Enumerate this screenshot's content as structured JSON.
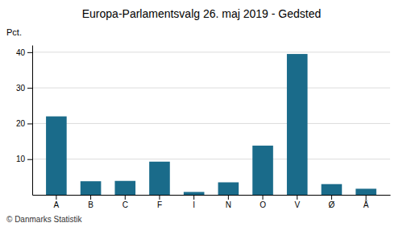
{
  "chart_data": {
    "type": "bar",
    "title": "Europa-Parlamentsvalg 26. maj 2019 - Gedsted",
    "ylabel": "Pct.",
    "categories": [
      "A",
      "B",
      "C",
      "F",
      "I",
      "N",
      "O",
      "V",
      "Ø",
      "Å"
    ],
    "values": [
      22.0,
      3.8,
      3.9,
      9.3,
      0.8,
      3.5,
      13.8,
      39.5,
      3.0,
      1.7
    ],
    "color": "#1a6b8a",
    "ylim": [
      0,
      42
    ],
    "yticks": [
      10,
      20,
      30,
      40
    ],
    "grid": true,
    "annotations": [
      "© Danmarks Statistik"
    ]
  }
}
